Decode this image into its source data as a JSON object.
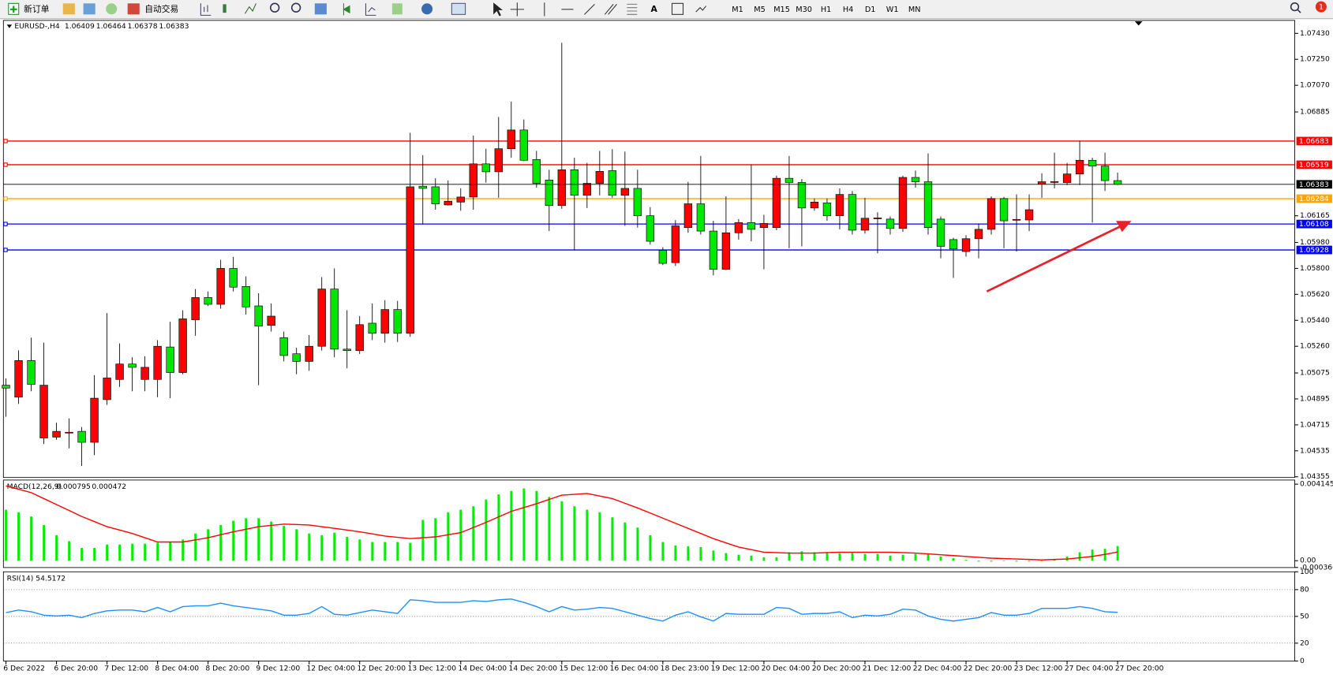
{
  "toolbar": {
    "new_order": "新订单",
    "auto_trading": "自动交易",
    "timeframes": [
      "M1",
      "M5",
      "M15",
      "M30",
      "H1",
      "H4",
      "D1",
      "W1",
      "MN"
    ],
    "notifications": 1
  },
  "chart_data": [
    {
      "type": "candlestick",
      "title": "EURUSD-,H4",
      "bull_color": "#ff0000",
      "bear_color": "#00e600",
      "ylim": [
        1.0435,
        1.0752
      ],
      "yticks": [
        {
          "value": 1.0743,
          "label": "1.07430"
        },
        {
          "value": 1.0725,
          "label": "1.07250"
        },
        {
          "value": 1.0707,
          "label": "1.07070"
        },
        1.06885,
        1.06165,
        {
          "value": 1.0598,
          "label": "1.05980"
        },
        {
          "value": 1.058,
          "label": "1.05800"
        },
        {
          "value": 1.0562,
          "label": "1.05620"
        },
        {
          "value": 1.0544,
          "label": "1.05440"
        },
        {
          "value": 1.0526,
          "label": "1.05260"
        },
        1.05075,
        1.04895,
        1.04715,
        1.04535,
        1.04355
      ],
      "levels": [
        {
          "value": 1.06683,
          "color": "#ff0000"
        },
        {
          "value": 1.06519,
          "color": "#ff0000"
        },
        {
          "value": 1.06284,
          "color": "#ffa500"
        },
        {
          "value": 1.06108,
          "color": "#0000ff"
        },
        {
          "value": 1.05928,
          "color": "#0000ff"
        }
      ],
      "categories": [
        "6 Dec 2022",
        null,
        null,
        null,
        "6 Dec 20:00",
        null,
        null,
        null,
        "7 Dec 12:00",
        null,
        null,
        null,
        "8 Dec 04:00",
        null,
        null,
        null,
        "8 Dec 20:00",
        null,
        null,
        null,
        "9 Dec 12:00",
        null,
        null,
        null,
        "12 Dec 04:00",
        null,
        null,
        null,
        "12 Dec 20:00",
        null,
        null,
        null,
        "13 Dec 12:00",
        null,
        null,
        null,
        "14 Dec 04:00",
        null,
        null,
        null,
        "14 Dec 20:00",
        null,
        null,
        null,
        "15 Dec 12:00",
        null,
        null,
        null,
        "16 Dec 04:00",
        null,
        null,
        null,
        "18 Dec 23:00",
        null,
        null,
        null,
        "19 Dec 12:00",
        null,
        null,
        null,
        "20 Dec 04:00",
        null,
        null,
        null,
        "20 Dec 20:00",
        null,
        null,
        null,
        "21 Dec 12:00",
        null,
        null,
        null,
        "22 Dec 04:00",
        null,
        null,
        null,
        "22 Dec 20:00",
        null,
        null,
        null,
        "23 Dec 12:00",
        null,
        null,
        null,
        "27 Dec 04:00",
        null,
        null,
        null,
        "27 Dec 20:00"
      ],
      "ohlc": [
        [
          1.0499,
          1.05037,
          1.04771,
          1.0497
        ],
        [
          1.04907,
          1.05232,
          1.0486,
          1.05161
        ],
        [
          1.05161,
          1.0532,
          1.04948,
          1.04996
        ],
        [
          1.04624,
          1.05285,
          1.04582,
          1.0499
        ],
        [
          1.0463,
          1.0473,
          1.04612,
          1.0467
        ],
        [
          1.0466,
          1.0476,
          1.04552,
          1.04664
        ],
        [
          1.0467,
          1.047,
          1.0443,
          1.04594
        ],
        [
          1.04594,
          1.0506,
          1.04505,
          1.049
        ],
        [
          1.0489,
          1.0549,
          1.04853,
          1.0504
        ],
        [
          1.0503,
          1.0528,
          1.04978,
          1.05137
        ],
        [
          1.05137,
          1.05184,
          1.04948,
          1.05114
        ],
        [
          1.0503,
          1.0519,
          1.04948,
          1.05114
        ],
        [
          1.0503,
          1.05303,
          1.04907,
          1.0526
        ],
        [
          1.05255,
          1.0543,
          1.049,
          1.05078
        ],
        [
          1.05078,
          1.0551,
          1.05066,
          1.0545
        ],
        [
          1.05444,
          1.05657,
          1.05333,
          1.05598
        ],
        [
          1.05598,
          1.0564,
          1.05539,
          1.05551
        ],
        [
          1.05551,
          1.0586,
          1.05521,
          1.058
        ],
        [
          1.058,
          1.0588,
          1.0564,
          1.0567
        ],
        [
          1.05675,
          1.05745,
          1.0548,
          1.05533
        ],
        [
          1.0554,
          1.05628,
          1.0499,
          1.054
        ],
        [
          1.05405,
          1.05557,
          1.05362,
          1.05469
        ],
        [
          1.0532,
          1.05362,
          1.05155,
          1.05196
        ],
        [
          1.05208,
          1.0525,
          1.05066,
          1.05155
        ],
        [
          1.05155,
          1.05338,
          1.0509,
          1.0526
        ],
        [
          1.0526,
          1.0574,
          1.0523,
          1.05657
        ],
        [
          1.05657,
          1.058,
          1.05184,
          1.0524
        ],
        [
          1.0524,
          1.0551,
          1.05107,
          1.0523
        ],
        [
          1.0523,
          1.0547,
          1.05207,
          1.0541
        ],
        [
          1.0542,
          1.05557,
          1.05303,
          1.0535
        ],
        [
          1.0535,
          1.0558,
          1.05285,
          1.05515
        ],
        [
          1.05515,
          1.05575,
          1.0529,
          1.0535
        ],
        [
          1.0535,
          1.0674,
          1.05326,
          1.06366
        ],
        [
          1.0637,
          1.06585,
          1.06105,
          1.06355
        ],
        [
          1.06366,
          1.06425,
          1.06207,
          1.06248
        ],
        [
          1.0624,
          1.0641,
          1.06236,
          1.06266
        ],
        [
          1.0626,
          1.06355,
          1.062,
          1.06295
        ],
        [
          1.06295,
          1.06721,
          1.06207,
          1.06525
        ],
        [
          1.06525,
          1.0663,
          1.06395,
          1.0647
        ],
        [
          1.0647,
          1.0685,
          1.0629,
          1.0663
        ],
        [
          1.0663,
          1.06957,
          1.06567,
          1.0676
        ],
        [
          1.0676,
          1.06833,
          1.06544,
          1.0655
        ],
        [
          1.06555,
          1.06615,
          1.0636,
          1.0639
        ],
        [
          1.06413,
          1.06484,
          1.06059,
          1.06236
        ],
        [
          1.06236,
          1.07365,
          1.06213,
          1.06484
        ],
        [
          1.06484,
          1.06567,
          1.05925,
          1.06307
        ],
        [
          1.06307,
          1.06532,
          1.06219,
          1.0639
        ],
        [
          1.0639,
          1.06615,
          1.06307,
          1.06473
        ],
        [
          1.06478,
          1.06627,
          1.0629,
          1.06307
        ],
        [
          1.06307,
          1.0661,
          1.06095,
          1.06355
        ],
        [
          1.06355,
          1.06484,
          1.06083,
          1.06165
        ],
        [
          1.06165,
          1.06225,
          1.05965,
          1.05988
        ],
        [
          1.05925,
          1.05947,
          1.05823,
          1.05835
        ],
        [
          1.0584,
          1.06135,
          1.05817,
          1.06095
        ],
        [
          1.06083,
          1.064,
          1.06047,
          1.06248
        ],
        [
          1.06248,
          1.0658,
          1.06035,
          1.06059
        ],
        [
          1.06059,
          1.0613,
          1.05752,
          1.05794
        ],
        [
          1.05794,
          1.063,
          1.05788,
          1.06047
        ],
        [
          1.06047,
          1.06142,
          1.06,
          1.06118
        ],
        [
          1.06118,
          1.0652,
          1.05988,
          1.06071
        ],
        [
          1.06083,
          1.06171,
          1.05794,
          1.06112
        ],
        [
          1.06083,
          1.06443,
          1.06065,
          1.06425
        ],
        [
          1.06425,
          1.0658,
          1.0594,
          1.06396
        ],
        [
          1.06396,
          1.06419,
          1.05953,
          1.06219
        ],
        [
          1.06219,
          1.06284,
          1.062,
          1.0626
        ],
        [
          1.06254,
          1.06284,
          1.0613,
          1.06165
        ],
        [
          1.06165,
          1.06355,
          1.06071,
          1.06313
        ],
        [
          1.06313,
          1.06337,
          1.06035,
          1.06065
        ],
        [
          1.06065,
          1.0629,
          1.06041,
          1.06148
        ],
        [
          1.06148,
          1.06189,
          1.05905,
          1.0615
        ],
        [
          1.06142,
          1.0616,
          1.06035,
          1.06077
        ],
        [
          1.06077,
          1.06443,
          1.06053,
          1.06431
        ],
        [
          1.06431,
          1.06478,
          1.0636,
          1.06401
        ],
        [
          1.06401,
          1.06597,
          1.06035,
          1.06083
        ],
        [
          1.06142,
          1.0616,
          1.0587,
          1.05953
        ],
        [
          1.06,
          1.06012,
          1.05734,
          1.05935
        ],
        [
          1.05917,
          1.0603,
          1.05882,
          1.06006
        ],
        [
          1.06006,
          1.06112,
          1.0587,
          1.06071
        ],
        [
          1.06071,
          1.063,
          1.06035,
          1.06284
        ],
        [
          1.06284,
          1.06296,
          1.0594,
          1.0613
        ],
        [
          1.06136,
          1.06313,
          1.05917,
          1.0614
        ],
        [
          1.06136,
          1.06313,
          1.06059,
          1.06207
        ],
        [
          1.06384,
          1.0646,
          1.0629,
          1.06401
        ],
        [
          1.06401,
          1.06603,
          1.06355,
          1.06402
        ],
        [
          1.06395,
          1.06532,
          1.06378,
          1.06455
        ],
        [
          1.06455,
          1.06685,
          1.06378,
          1.0655
        ],
        [
          1.0655,
          1.06567,
          1.06118,
          1.0651
        ],
        [
          1.0651,
          1.06603,
          1.06337,
          1.06409
        ],
        [
          1.06409,
          1.06464,
          1.06378,
          1.06383
        ]
      ]
    },
    {
      "type": "combo",
      "title": "MACD(12,26,9)",
      "ylim": [
        -0.00037,
        0.00437
      ],
      "yticks": [
        0.004145,
        {
          "value": 0,
          "label": "0.00"
        },
        -0.000366
      ],
      "series": [
        {
          "type": "bar",
          "color": "#00ee00",
          "values": [
            0.002763,
            0.002625,
            0.002395,
            0.001934,
            0.001382,
            0.001059,
            0.000691,
            0.000691,
            0.000875,
            0.000875,
            0.000921,
            0.000921,
            0.000967,
            0.001013,
            0.001151,
            0.001474,
            0.001704,
            0.001934,
            0.002165,
            0.002303,
            0.002303,
            0.002119,
            0.001888,
            0.001704,
            0.001474,
            0.001382,
            0.00152,
            0.00129,
            0.001151,
            0.001013,
            0.001013,
            0.001013,
            0.000967,
            0.002211,
            0.002303,
            0.002625,
            0.002763,
            0.002948,
            0.003316,
            0.003592,
            0.003777,
            0.003915,
            0.003777,
            0.003454,
            0.003224,
            0.002948,
            0.002763,
            0.002625,
            0.002349,
            0.002072,
            0.001796,
            0.001382,
            0.001013,
            0.000829,
            0.000783,
            0.000737,
            0.000553,
            0.000414,
            0.000322,
            0.000276,
            0.000184,
            0.000184,
            0.000461,
            0.000507,
            0.000461,
            0.000461,
            0.000414,
            0.000461,
            0.000368,
            0.000368,
            0.000276,
            0.000322,
            0.000368,
            0.000368,
            0.00023,
            0.000138,
            4.6e-05,
            -4.6e-05,
            -4.6e-05,
            1e-05,
            -4.6e-05,
            -4.6e-05,
            -4.6e-05,
            9.2e-05,
            0.00023,
            0.000461,
            0.000599,
            0.000645,
            0.000795
          ]
        },
        {
          "type": "line",
          "color": "#ff0000",
          "values": [
            0.004055,
            0.003872,
            0.003688,
            0.003365,
            0.003043,
            0.00272,
            0.002397,
            0.002121,
            0.001844,
            0.00166,
            0.001475,
            0.001245,
            0.001014,
            0.001014,
            0.001014,
            0.00113,
            0.001245,
            0.001406,
            0.001567,
            0.001706,
            0.001844,
            0.001913,
            0.001982,
            0.001959,
            0.001936,
            0.001844,
            0.001752,
            0.00166,
            0.001567,
            0.001452,
            0.001337,
            0.001268,
            0.001199,
            0.001245,
            0.001291,
            0.001406,
            0.001521,
            0.001798,
            0.002075,
            0.002374,
            0.002674,
            0.002881,
            0.003089,
            0.003319,
            0.00355,
            0.003596,
            0.003642,
            0.003504,
            0.003365,
            0.003112,
            0.002858,
            0.002582,
            0.002305,
            0.002028,
            0.001752,
            0.001475,
            0.001199,
            0.000968,
            0.000738,
            0.000599,
            0.000461,
            0.000438,
            0.000415,
            0.000415,
            0.000415,
            0.000438,
            0.000461,
            0.000461,
            0.000461,
            0.000461,
            0.000461,
            0.000438,
            0.000415,
            0.000369,
            0.000323,
            0.000277,
            0.000231,
            0.000184,
            0.000138,
            0.000115,
            9.2e-05,
            6.9e-05,
            4.6e-05,
            6.9e-05,
            9.2e-05,
            0.000161,
            0.000231,
            0.000346,
            0.000472
          ]
        }
      ]
    },
    {
      "type": "line",
      "title": "RSI(14)",
      "grid": true,
      "ylim": [
        0,
        100
      ],
      "yticks": [
        100,
        80,
        50,
        20,
        0
      ],
      "series": [
        {
          "color": "#1e90ff",
          "values": [
            54.3,
            57.1,
            55.2,
            51.4,
            50.5,
            51.4,
            48.6,
            53.3,
            56.2,
            57.1,
            57.1,
            55.2,
            60.0,
            55.2,
            61.0,
            61.9,
            61.9,
            64.8,
            61.9,
            60.0,
            58.1,
            56.2,
            51.4,
            51.4,
            53.3,
            61.0,
            52.4,
            51.4,
            54.3,
            57.1,
            55.2,
            53.3,
            68.6,
            67.6,
            65.7,
            65.7,
            65.7,
            67.6,
            66.7,
            68.6,
            69.5,
            65.7,
            61.0,
            55.2,
            61.0,
            57.1,
            58.1,
            60.0,
            59.0,
            55.2,
            51.4,
            47.6,
            44.8,
            51.4,
            55.2,
            49.5,
            44.8,
            53.3,
            52.4,
            52.4,
            52.4,
            60.0,
            59.0,
            52.4,
            53.3,
            53.3,
            55.2,
            48.6,
            51.4,
            50.5,
            52.4,
            58.1,
            57.1,
            50.5,
            46.7,
            44.8,
            46.7,
            48.6,
            54.3,
            51.4,
            51.4,
            53.3,
            59.0,
            59.0,
            59.0,
            61.0,
            59.0,
            55.2,
            54.5172
          ]
        }
      ]
    }
  ]
}
